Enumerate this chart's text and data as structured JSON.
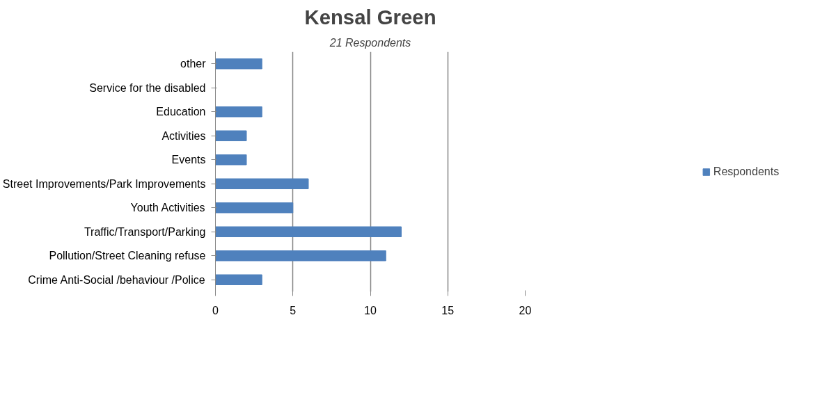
{
  "chart_data": {
    "type": "bar",
    "orientation": "horizontal",
    "title": "Kensal Green",
    "subtitle": "21 Respondents",
    "categories": [
      "other",
      "Service for the disabled",
      "Education",
      "Activities",
      "Events",
      "Street Improvements/Park Improvements",
      "Youth Activities",
      "Traffic/Transport/Parking",
      "Pollution/Street Cleaning refuse",
      "Crime Anti-Social /behaviour /Police"
    ],
    "series": [
      {
        "name": "Respondents",
        "color": "#4f81bd",
        "values": [
          3,
          0,
          3,
          2,
          2,
          6,
          5,
          12,
          11,
          3
        ]
      }
    ],
    "xlim": [
      0,
      20
    ],
    "xticks": [
      0,
      5,
      10,
      15,
      20
    ],
    "grid": "x",
    "legend": "right"
  }
}
